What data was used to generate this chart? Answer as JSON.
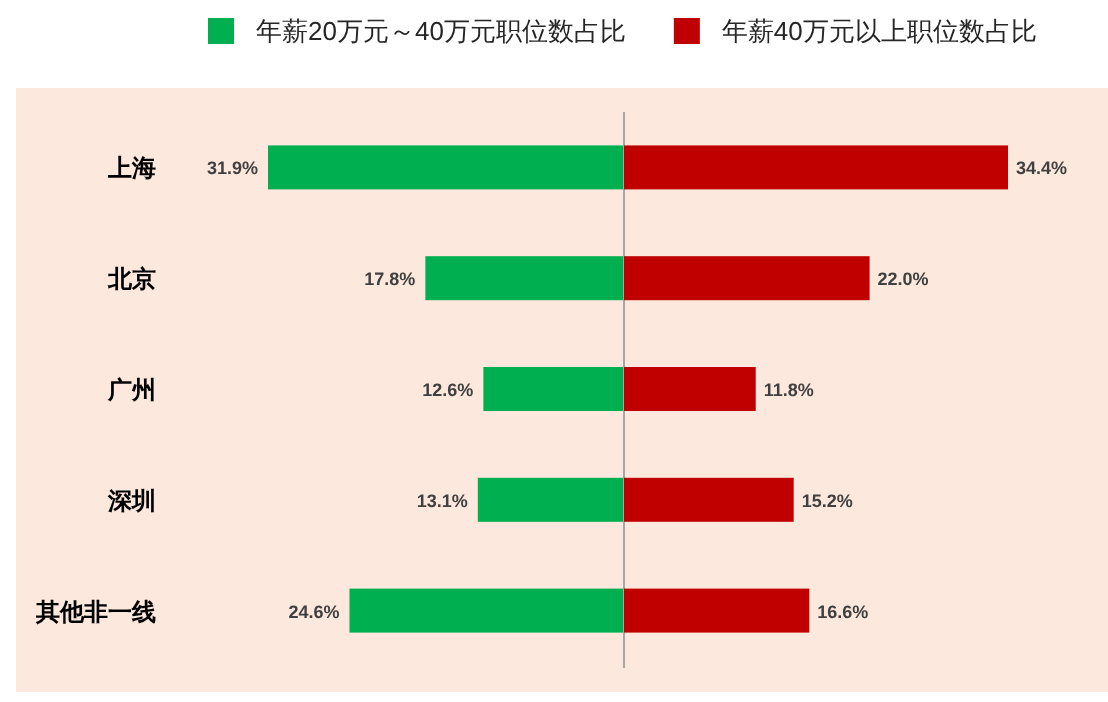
{
  "chart_data": [
    {
      "type": "bar",
      "orientation": "horizontal",
      "categories": [
        "上海",
        "北京",
        "广州",
        "深圳",
        "其他非一线"
      ],
      "series": [
        {
          "name": "年薪20万元～40万元职位数占比",
          "color": "#00b050",
          "values": [
            31.9,
            17.8,
            12.6,
            13.1,
            24.6
          ],
          "value_labels": [
            "31.9%",
            "17.8%",
            "12.6%",
            "13.1%",
            "24.6%"
          ]
        }
      ],
      "xlim": [
        31.9,
        0
      ],
      "tick_labels": "y",
      "legend": "top"
    },
    {
      "type": "bar",
      "orientation": "horizontal",
      "series": [
        {
          "name": "年薪40万元以上职位数占比",
          "color": "#c00000",
          "values": [
            34.4,
            22.0,
            11.8,
            15.2,
            16.6
          ],
          "value_labels": [
            "34.4%",
            "22.0%",
            "11.8%",
            "15.2%",
            "16.6%"
          ]
        }
      ],
      "xlim": [
        0,
        34.4
      ],
      "tick_labels": false,
      "legend": "top"
    }
  ]
}
